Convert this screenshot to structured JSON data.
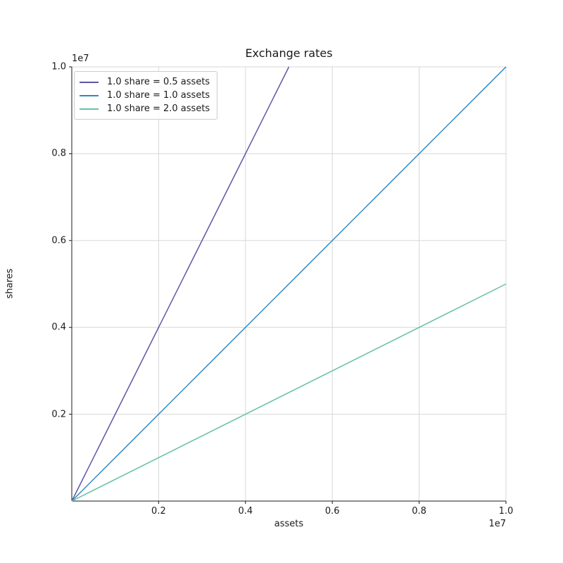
{
  "chart_data": {
    "type": "line",
    "title": "Exchange rates",
    "xlabel": "assets",
    "ylabel": "shares",
    "x_offset_label": "1e7",
    "y_offset_label": "1e7",
    "xlim": [
      0,
      10000000
    ],
    "ylim": [
      0,
      10000000
    ],
    "x_ticks": {
      "values": [
        2000000,
        4000000,
        6000000,
        8000000,
        10000000
      ],
      "labels": [
        "0.2",
        "0.4",
        "0.6",
        "0.8",
        "1.0"
      ]
    },
    "y_ticks": {
      "values": [
        2000000,
        4000000,
        6000000,
        8000000,
        10000000
      ],
      "labels": [
        "0.2",
        "0.4",
        "0.6",
        "0.8",
        "1.0"
      ]
    },
    "grid": true,
    "legend_position": "upper left",
    "series": [
      {
        "name": "1.0 share = 0.5 assets",
        "color": "#5a55a5",
        "points": [
          [
            0,
            0
          ],
          [
            5000000,
            10000000
          ]
        ]
      },
      {
        "name": "1.0 share = 1.0 assets",
        "color": "#3288bd",
        "points": [
          [
            0,
            0
          ],
          [
            10000000,
            10000000
          ]
        ]
      },
      {
        "name": "1.0 share = 2.0 assets",
        "color": "#66c2a5",
        "points": [
          [
            0,
            0
          ],
          [
            10000000,
            5000000
          ]
        ]
      }
    ],
    "style": {
      "grid_color": "#d7d7d7",
      "spine_color": "#1a1a1a",
      "tick_color": "#1a1a1a",
      "text_color": "#1a1a1a",
      "background": "#ffffff",
      "legend_border": "#cccccc"
    }
  }
}
